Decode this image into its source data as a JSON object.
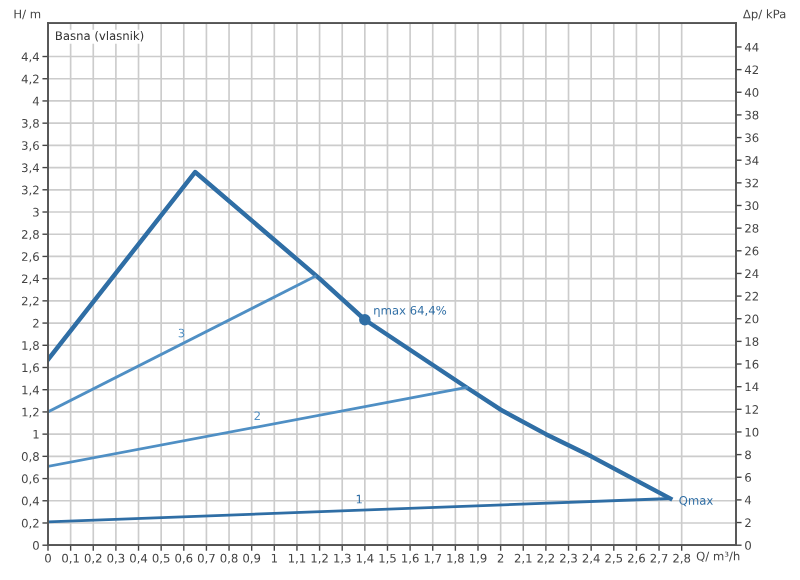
{
  "chart_data": {
    "type": "line",
    "title": "Basna (vlasnik)",
    "xlabel": "Q/ m³/h",
    "ylabel": "H/ m",
    "y2label": "Δp/ kPa",
    "xlim": [
      0,
      3.04
    ],
    "ylim": [
      0,
      4.7
    ],
    "y2lim": [
      0,
      46.1
    ],
    "xticks": [
      0,
      {
        "value": 0.1,
        "label": "0,1"
      },
      {
        "value": 0.2,
        "label": "0,2"
      },
      {
        "value": 0.3,
        "label": "0,3"
      },
      {
        "value": 0.4,
        "label": "0,4"
      },
      {
        "value": 0.5,
        "label": "0,5"
      },
      {
        "value": 0.6,
        "label": "0,6"
      },
      {
        "value": 0.7,
        "label": "0,7"
      },
      {
        "value": 0.8,
        "label": "0,8"
      },
      {
        "value": 0.9,
        "label": "0,9"
      },
      1,
      {
        "value": 1.1,
        "label": "1,1"
      },
      {
        "value": 1.2,
        "label": "1,2"
      },
      {
        "value": 1.3,
        "label": "1,3"
      },
      {
        "value": 1.4,
        "label": "1,4"
      },
      {
        "value": 1.5,
        "label": "1,5"
      },
      {
        "value": 1.6,
        "label": "1,6"
      },
      {
        "value": 1.7,
        "label": "1,7"
      },
      {
        "value": 1.8,
        "label": "1,8"
      },
      {
        "value": 1.9,
        "label": "1,9"
      },
      2,
      {
        "value": 2.1,
        "label": "2,1"
      },
      {
        "value": 2.2,
        "label": "2,2"
      },
      {
        "value": 2.3,
        "label": "2,3"
      },
      {
        "value": 2.4,
        "label": "2,4"
      },
      {
        "value": 2.5,
        "label": "2,5"
      },
      {
        "value": 2.6,
        "label": "2,6"
      },
      {
        "value": 2.7,
        "label": "2,7"
      },
      {
        "value": 2.8,
        "label": "2,8"
      }
    ],
    "yticks": [
      0,
      {
        "value": 0.2,
        "label": "0,2"
      },
      {
        "value": 0.4,
        "label": "0,4"
      },
      {
        "value": 0.6,
        "label": "0,6"
      },
      {
        "value": 0.8,
        "label": "0,8"
      },
      1,
      {
        "value": 1.2,
        "label": "1,2"
      },
      {
        "value": 1.4,
        "label": "1,4"
      },
      {
        "value": 1.6,
        "label": "1,6"
      },
      {
        "value": 1.8,
        "label": "1,8"
      },
      2,
      {
        "value": 2.2,
        "label": "2,2"
      },
      {
        "value": 2.4,
        "label": "2,4"
      },
      {
        "value": 2.6,
        "label": "2,6"
      },
      {
        "value": 2.8,
        "label": "2,8"
      },
      3,
      {
        "value": 3.2,
        "label": "3,2"
      },
      {
        "value": 3.4,
        "label": "3,4"
      },
      {
        "value": 3.6,
        "label": "3,6"
      },
      {
        "value": 3.8,
        "label": "3,8"
      },
      4,
      {
        "value": 4.2,
        "label": "4,2"
      },
      {
        "value": 4.4,
        "label": "4,4"
      }
    ],
    "y2ticks": [
      0,
      2,
      4,
      6,
      8,
      10,
      12,
      14,
      16,
      18,
      20,
      22,
      24,
      26,
      28,
      30,
      32,
      34,
      36,
      38,
      40,
      42,
      44
    ],
    "grid": true,
    "legend": false,
    "line_style": "solid",
    "marker": "none",
    "series": [
      {
        "color": "#2f6ea5",
        "x": [
          0,
          0.65,
          1.2,
          1.4,
          1.85,
          2.0,
          2.2,
          2.4,
          2.75
        ],
        "values": [
          1.67,
          3.36,
          2.4,
          2.03,
          1.42,
          1.22,
          1.0,
          0.8,
          0.42
        ]
      },
      {
        "name": "3",
        "color": "#4f8fc4",
        "x": [
          0,
          1.18
        ],
        "values": [
          1.2,
          2.42
        ]
      },
      {
        "name": "2",
        "color": "#4f8fc4",
        "x": [
          0,
          1.85
        ],
        "values": [
          0.71,
          1.42
        ]
      },
      {
        "name": "1",
        "color": "#2f6ea5",
        "x": [
          0,
          2.75
        ],
        "values": [
          0.21,
          0.42
        ]
      },
      {
        "type": "scatter",
        "marker": "circle",
        "color": "#2f6ea5",
        "x": [
          1.4
        ],
        "values": [
          2.03
        ]
      }
    ],
    "annotations": [
      {
        "text": "ηmax 64,4%",
        "x": 1.4,
        "y": 2.03
      },
      {
        "text": "Qmax",
        "x": 2.75,
        "y": 0.42
      }
    ]
  }
}
